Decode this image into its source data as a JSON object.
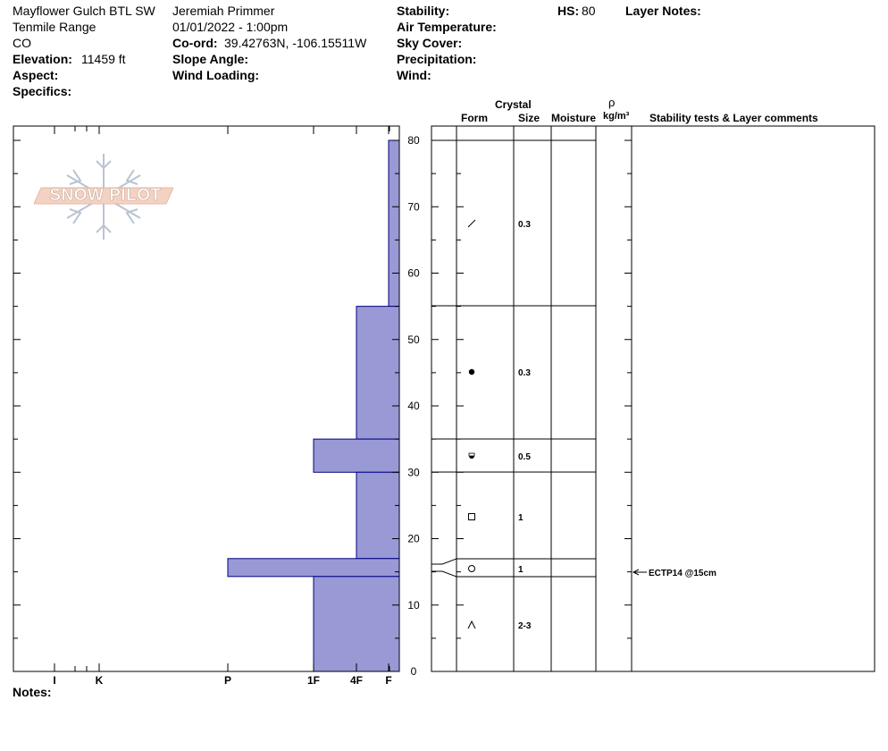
{
  "header": {
    "location": "Mayflower Gulch BTL SW",
    "range": "Tenmile Range",
    "state": "CO",
    "elevation_label": "Elevation:",
    "elevation_value": "11459 ft",
    "aspect_label": "Aspect:",
    "specifics_label": "Specifics:",
    "observer": "Jeremiah Primmer",
    "datetime": "01/01/2022 - 1:00pm",
    "coord_label": "Co-ord:",
    "coord_value": "39.42763N, -106.15511W",
    "slope_label": "Slope Angle:",
    "wind_loading_label": "Wind Loading:",
    "stability_label": "Stability:",
    "air_temp_label": "Air Temperature:",
    "sky_label": "Sky Cover:",
    "precip_label": "Precipitation:",
    "wind_label": "Wind:",
    "hs_label": "HS:",
    "hs_value": "80",
    "layer_notes_label": "Layer Notes:"
  },
  "logo_text": "SNOW PILOT",
  "notes_label": "Notes:",
  "columns": {
    "crystal": "Crystal",
    "form": "Form",
    "size": "Size",
    "moisture": "Moisture",
    "rho": "ρ",
    "density_unit": "kg/m³",
    "comments": "Stability tests & Layer comments"
  },
  "colors": {
    "hardness_fill": "#9999d6",
    "outline": "#000080",
    "grid": "#000000"
  },
  "chart_data": {
    "type": "bar",
    "title": "",
    "ylabel": "",
    "ylim": [
      0,
      82
    ],
    "y_ticks": [
      0,
      10,
      20,
      30,
      40,
      50,
      60,
      70,
      80
    ],
    "hardness_scale": [
      "I",
      "K",
      "P",
      "1F",
      "4F",
      "F"
    ],
    "layers": [
      {
        "bottom": 80,
        "top": 82,
        "hardness": ""
      },
      {
        "bottom": 55,
        "top": 80,
        "hardness": "F",
        "form": "slash",
        "size": "0.3"
      },
      {
        "bottom": 35,
        "top": 55,
        "hardness": "4F",
        "form": "dot",
        "size": "0.3"
      },
      {
        "bottom": 30,
        "top": 35,
        "hardness": "1F",
        "form": "mixed",
        "size": "0.5"
      },
      {
        "bottom": 17,
        "top": 30,
        "hardness": "4F",
        "form": "square",
        "size": "1"
      },
      {
        "bottom": 14.3,
        "top": 17,
        "hardness": "P",
        "form": "circle",
        "size": "1"
      },
      {
        "bottom": 0,
        "top": 14.3,
        "hardness": "1F",
        "form": "caret",
        "size": "2-3"
      }
    ],
    "stability_tests": [
      {
        "depth": 15,
        "label": "ECTP14 @15cm"
      }
    ]
  }
}
